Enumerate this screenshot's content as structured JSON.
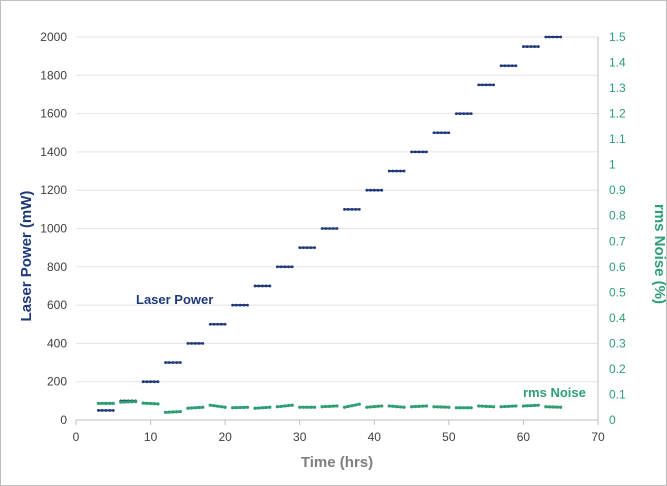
{
  "chart_data": {
    "type": "scatter",
    "xlabel": "Time (hrs)",
    "ylabel_left": "Laser Power (mW)",
    "ylabel_right": "rms Noise (%)",
    "xlim": [
      0,
      70
    ],
    "ylim_left": [
      0,
      2000
    ],
    "ylim_right": [
      0,
      1.5
    ],
    "x_ticks": [
      0,
      10,
      20,
      30,
      40,
      50,
      60,
      70
    ],
    "y_left_ticks": [
      0,
      200,
      400,
      600,
      800,
      1000,
      1200,
      1400,
      1600,
      1800,
      2000
    ],
    "y_right_ticks": [
      "0",
      "0.1",
      "0.2",
      "0.3",
      "0.4",
      "0.5",
      "0.6",
      "0.7",
      "0.8",
      "0.9",
      "1",
      "1.1",
      "1.2",
      "1.3",
      "1.4",
      "1.5"
    ],
    "grid": true,
    "colors": {
      "power": "#1f3a7a",
      "noise": "#2e9e73"
    },
    "series": [
      {
        "name": "Laser Power",
        "axis": "left",
        "segments": [
          {
            "x": [
              3,
              5
            ],
            "y": 50
          },
          {
            "x": [
              6,
              8
            ],
            "y": 100
          },
          {
            "x": [
              9,
              11
            ],
            "y": 200
          },
          {
            "x": [
              12,
              14
            ],
            "y": 300
          },
          {
            "x": [
              15,
              17
            ],
            "y": 400
          },
          {
            "x": [
              18,
              20
            ],
            "y": 500
          },
          {
            "x": [
              21,
              23
            ],
            "y": 600
          },
          {
            "x": [
              24,
              26
            ],
            "y": 700
          },
          {
            "x": [
              27,
              29
            ],
            "y": 800
          },
          {
            "x": [
              30,
              32
            ],
            "y": 900
          },
          {
            "x": [
              33,
              35
            ],
            "y": 1000
          },
          {
            "x": [
              36,
              38
            ],
            "y": 1100
          },
          {
            "x": [
              39,
              41
            ],
            "y": 1200
          },
          {
            "x": [
              42,
              44
            ],
            "y": 1300
          },
          {
            "x": [
              45,
              47
            ],
            "y": 1400
          },
          {
            "x": [
              48,
              50
            ],
            "y": 1500
          },
          {
            "x": [
              51,
              53
            ],
            "y": 1600
          },
          {
            "x": [
              54,
              56
            ],
            "y": 1750
          },
          {
            "x": [
              57,
              59
            ],
            "y": 1850
          },
          {
            "x": [
              60,
              62
            ],
            "y": 1950
          },
          {
            "x": [
              63,
              65
            ],
            "y": 2000
          }
        ]
      },
      {
        "name": "rms Noise",
        "axis": "right",
        "segments": [
          {
            "x": [
              3,
              5
            ],
            "y": [
              0.065,
              0.065
            ]
          },
          {
            "x": [
              6,
              8
            ],
            "y": [
              0.07,
              0.072
            ]
          },
          {
            "x": [
              9,
              11
            ],
            "y": [
              0.066,
              0.063
            ]
          },
          {
            "x": [
              12,
              14
            ],
            "y": [
              0.03,
              0.033
            ]
          },
          {
            "x": [
              15,
              17
            ],
            "y": [
              0.046,
              0.05
            ]
          },
          {
            "x": [
              18,
              20
            ],
            "y": [
              0.058,
              0.05
            ]
          },
          {
            "x": [
              21,
              23
            ],
            "y": [
              0.048,
              0.05
            ]
          },
          {
            "x": [
              24,
              26
            ],
            "y": [
              0.046,
              0.05
            ]
          },
          {
            "x": [
              27,
              29
            ],
            "y": [
              0.052,
              0.058
            ]
          },
          {
            "x": [
              30,
              32
            ],
            "y": [
              0.05,
              0.05
            ]
          },
          {
            "x": [
              33,
              35
            ],
            "y": [
              0.052,
              0.055
            ]
          },
          {
            "x": [
              36,
              38
            ],
            "y": [
              0.05,
              0.062
            ]
          },
          {
            "x": [
              39,
              41
            ],
            "y": [
              0.05,
              0.055
            ]
          },
          {
            "x": [
              42,
              44
            ],
            "y": [
              0.055,
              0.05
            ]
          },
          {
            "x": [
              45,
              47
            ],
            "y": [
              0.052,
              0.055
            ]
          },
          {
            "x": [
              48,
              50
            ],
            "y": [
              0.052,
              0.05
            ]
          },
          {
            "x": [
              51,
              53
            ],
            "y": [
              0.048,
              0.048
            ]
          },
          {
            "x": [
              54,
              56
            ],
            "y": [
              0.055,
              0.052
            ]
          },
          {
            "x": [
              57,
              59
            ],
            "y": [
              0.052,
              0.055
            ]
          },
          {
            "x": [
              60,
              62
            ],
            "y": [
              0.055,
              0.058
            ]
          },
          {
            "x": [
              63,
              65
            ],
            "y": [
              0.052,
              0.05
            ]
          }
        ]
      }
    ],
    "labels": {
      "power": "Laser Power",
      "noise": "rms Noise"
    }
  }
}
